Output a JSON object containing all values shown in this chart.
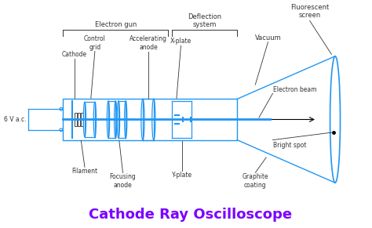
{
  "title": "Cathode Ray Oscilloscope",
  "title_color": "#7B00FF",
  "title_fontsize": 13,
  "bg_color": "#ffffff",
  "dc": "#2196F3",
  "tc": "#333333",
  "labels": {
    "cathode": "Cathode",
    "control_grid": "Control\ngrid",
    "accelerating_anode": "Accelerating\nanode",
    "x_plate": "X-plate",
    "vacuum": "Vacuum",
    "fluorescent_screen": "Fluorescent\nscreen",
    "electron_beam": "Electron beam",
    "bright_spot": "Bright spot",
    "filament": "Filament",
    "focusing_anode": "Focusing\nanode",
    "y_plate": "Y-plate",
    "graphite_coating": "Graphite\ncoating",
    "voltage": "6 V a.c.",
    "electron_gun": "Electron gun",
    "deflection_system": "Deflection\nsystem"
  },
  "figsize": [
    4.74,
    2.91
  ],
  "dpi": 100
}
